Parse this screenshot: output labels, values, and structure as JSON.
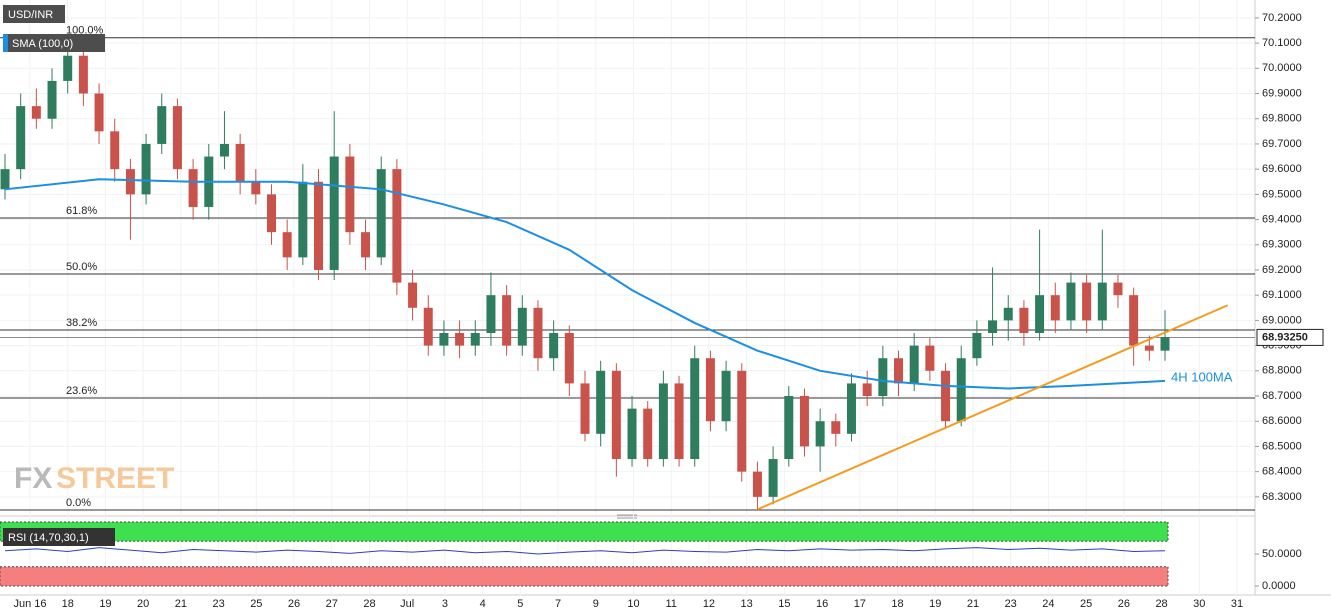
{
  "chart_data": {
    "type": "candlestick",
    "title": "USD/INR",
    "indicator_label": "SMA (100,0)",
    "rsi_label": "RSI (14,70,30,1)",
    "annotation": "4H 100MA",
    "watermark": [
      "FX",
      "STREET"
    ],
    "ylim": [
      68.228,
      70.271
    ],
    "yticks": [
      {
        "value": 70.2,
        "label": "70.2000"
      },
      {
        "value": 70.1,
        "label": "70.1000"
      },
      {
        "value": 70.0,
        "label": "70.0000"
      },
      {
        "value": 69.9,
        "label": "69.9000"
      },
      {
        "value": 69.8,
        "label": "69.8000"
      },
      {
        "value": 69.7,
        "label": "69.7000"
      },
      {
        "value": 69.6,
        "label": "69.6000"
      },
      {
        "value": 69.5,
        "label": "69.5000"
      },
      {
        "value": 69.4,
        "label": "69.4000"
      },
      {
        "value": 69.3,
        "label": "69.3000"
      },
      {
        "value": 69.2,
        "label": "69.2000"
      },
      {
        "value": 69.1,
        "label": "69.1000"
      },
      {
        "value": 69.0,
        "label": "69.0000"
      },
      {
        "value": 68.9,
        "label": "68.9000"
      },
      {
        "value": 68.8,
        "label": "68.8000"
      },
      {
        "value": 68.7,
        "label": "68.7000"
      },
      {
        "value": 68.6,
        "label": "68.6000"
      },
      {
        "value": 68.5,
        "label": "68.5000"
      },
      {
        "value": 68.4,
        "label": "68.4000"
      },
      {
        "value": 68.3,
        "label": "68.3000"
      }
    ],
    "last_price": {
      "value": 68.9325,
      "label": "68.93250"
    },
    "fib_levels": [
      {
        "label": "100.0%",
        "value": 70.121
      },
      {
        "label": "61.8%",
        "value": 69.406
      },
      {
        "label": "50.0%",
        "value": 69.184
      },
      {
        "label": "38.2%",
        "value": 68.962
      },
      {
        "label": "23.6%",
        "value": 68.692
      },
      {
        "label": "0.0%",
        "value": 68.248
      }
    ],
    "categories": [
      "Jun 16",
      "18",
      "19",
      "20",
      "21",
      "23",
      "25",
      "26",
      "27",
      "28",
      "Jul",
      "3",
      "4",
      "5",
      "7",
      "9",
      "10",
      "11",
      "12",
      "13",
      "15",
      "16",
      "17",
      "18",
      "19",
      "21",
      "23",
      "24",
      "25",
      "26",
      "28",
      "30",
      "31"
    ],
    "up_color": "#2f7d5f",
    "down_color": "#c9524a",
    "candles": [
      [
        69.52,
        69.66,
        69.48,
        69.6
      ],
      [
        69.6,
        69.9,
        69.56,
        69.85
      ],
      [
        69.85,
        69.92,
        69.76,
        69.8
      ],
      [
        69.8,
        70.0,
        69.76,
        69.95
      ],
      [
        69.95,
        70.12,
        69.9,
        70.05
      ],
      [
        70.05,
        70.08,
        69.85,
        69.9
      ],
      [
        69.9,
        69.94,
        69.7,
        69.75
      ],
      [
        69.75,
        69.8,
        69.55,
        69.6
      ],
      [
        69.6,
        69.64,
        69.32,
        69.5
      ],
      [
        69.5,
        69.74,
        69.46,
        69.7
      ],
      [
        69.7,
        69.9,
        69.66,
        69.85
      ],
      [
        69.85,
        69.88,
        69.56,
        69.6
      ],
      [
        69.6,
        69.64,
        69.4,
        69.45
      ],
      [
        69.45,
        69.7,
        69.4,
        69.65
      ],
      [
        69.65,
        69.83,
        69.6,
        69.7
      ],
      [
        69.7,
        69.74,
        69.5,
        69.55
      ],
      [
        69.55,
        69.6,
        69.46,
        69.5
      ],
      [
        69.5,
        69.54,
        69.3,
        69.35
      ],
      [
        69.35,
        69.4,
        69.2,
        69.25
      ],
      [
        69.25,
        69.62,
        69.22,
        69.55
      ],
      [
        69.55,
        69.6,
        69.16,
        69.2
      ],
      [
        69.2,
        69.83,
        69.16,
        69.65
      ],
      [
        69.65,
        69.7,
        69.3,
        69.35
      ],
      [
        69.35,
        69.4,
        69.2,
        69.25
      ],
      [
        69.25,
        69.65,
        69.22,
        69.6
      ],
      [
        69.6,
        69.64,
        69.1,
        69.15
      ],
      [
        69.15,
        69.2,
        69.0,
        69.05
      ],
      [
        69.05,
        69.1,
        68.86,
        68.9
      ],
      [
        68.9,
        69.0,
        68.86,
        68.95
      ],
      [
        68.95,
        69.0,
        68.85,
        68.9
      ],
      [
        68.9,
        69.0,
        68.86,
        68.95
      ],
      [
        68.95,
        69.19,
        68.9,
        69.1
      ],
      [
        69.1,
        69.14,
        68.86,
        68.9
      ],
      [
        68.9,
        69.1,
        68.86,
        69.05
      ],
      [
        69.05,
        69.08,
        68.8,
        68.85
      ],
      [
        68.85,
        69.0,
        68.8,
        68.95
      ],
      [
        68.95,
        68.98,
        68.7,
        68.75
      ],
      [
        68.75,
        68.8,
        68.52,
        68.55
      ],
      [
        68.55,
        68.84,
        68.5,
        68.8
      ],
      [
        68.8,
        68.83,
        68.38,
        68.45
      ],
      [
        68.45,
        68.7,
        68.42,
        68.65
      ],
      [
        68.65,
        68.68,
        68.42,
        68.45
      ],
      [
        68.45,
        68.8,
        68.42,
        68.75
      ],
      [
        68.75,
        68.78,
        68.42,
        68.45
      ],
      [
        68.45,
        68.9,
        68.42,
        68.85
      ],
      [
        68.85,
        68.88,
        68.56,
        68.6
      ],
      [
        68.6,
        68.84,
        68.56,
        68.8
      ],
      [
        68.8,
        68.83,
        68.36,
        68.4
      ],
      [
        68.4,
        68.44,
        68.25,
        68.3
      ],
      [
        68.3,
        68.5,
        68.27,
        68.45
      ],
      [
        68.45,
        68.74,
        68.42,
        68.7
      ],
      [
        68.7,
        68.73,
        68.46,
        68.5
      ],
      [
        68.5,
        68.65,
        68.4,
        68.6
      ],
      [
        68.6,
        68.63,
        68.5,
        68.55
      ],
      [
        68.55,
        68.79,
        68.52,
        68.75
      ],
      [
        68.75,
        68.8,
        68.66,
        68.7
      ],
      [
        68.7,
        68.9,
        68.66,
        68.85
      ],
      [
        68.85,
        68.88,
        68.7,
        68.75
      ],
      [
        68.75,
        68.95,
        68.72,
        68.9
      ],
      [
        68.9,
        68.93,
        68.76,
        68.8
      ],
      [
        68.8,
        68.83,
        68.57,
        68.6
      ],
      [
        68.6,
        68.9,
        68.58,
        68.85
      ],
      [
        68.85,
        69.0,
        68.82,
        68.95
      ],
      [
        68.95,
        69.21,
        68.9,
        69.0
      ],
      [
        69.0,
        69.1,
        68.92,
        69.05
      ],
      [
        69.05,
        69.08,
        68.9,
        68.95
      ],
      [
        68.95,
        69.36,
        68.92,
        69.1
      ],
      [
        69.1,
        69.15,
        68.95,
        69.0
      ],
      [
        69.0,
        69.19,
        68.96,
        69.15
      ],
      [
        69.15,
        69.18,
        68.95,
        69.0
      ],
      [
        69.0,
        69.36,
        68.96,
        69.15
      ],
      [
        69.15,
        69.18,
        69.05,
        69.1
      ],
      [
        69.1,
        69.13,
        68.82,
        68.9
      ],
      [
        68.9,
        68.94,
        68.84,
        68.88
      ],
      [
        68.88,
        69.04,
        68.84,
        68.9325
      ]
    ],
    "sma": {
      "color": "#1a8fe3",
      "x": [
        0,
        6,
        12,
        18,
        24,
        28,
        32,
        36,
        40,
        44,
        48,
        52,
        56,
        60,
        64,
        68,
        74
      ],
      "values": [
        69.52,
        69.56,
        69.55,
        69.55,
        69.52,
        69.46,
        69.39,
        69.28,
        69.12,
        68.99,
        68.88,
        68.8,
        68.76,
        68.74,
        68.73,
        68.74,
        68.76
      ]
    },
    "trendline": {
      "color": "#f39c1f",
      "x": [
        48,
        78
      ],
      "values": [
        68.25,
        69.06
      ]
    },
    "rsi": {
      "color": "#2a3fc9",
      "ylim": [
        -6.25,
        106.25
      ],
      "yticks": [
        {
          "value": 50,
          "label": "50.0000"
        },
        {
          "value": 0,
          "label": "0.0000"
        }
      ],
      "bands": [
        {
          "range": [
            70,
            100
          ],
          "color": "#3fe04f"
        },
        {
          "range": [
            0,
            30
          ],
          "color": "#f57f7f"
        }
      ],
      "values": [
        55,
        58,
        54,
        60,
        56,
        52,
        57,
        55,
        53,
        56,
        54,
        51,
        55,
        53,
        56,
        52,
        54,
        50,
        53,
        55,
        52,
        56,
        54,
        53,
        57,
        55,
        58,
        56,
        57,
        55,
        58,
        60,
        57,
        59,
        56,
        58,
        54,
        55
      ]
    }
  }
}
